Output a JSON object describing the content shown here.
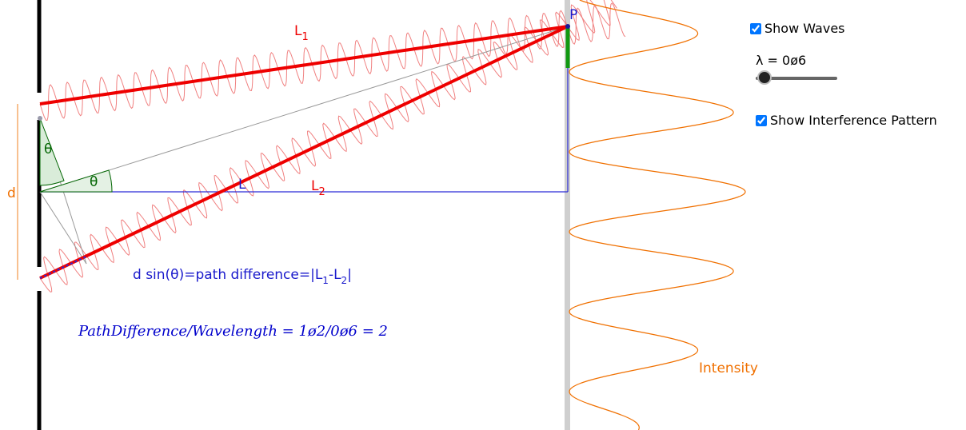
{
  "labels": {
    "L1": {
      "text": "L",
      "sub": "1"
    },
    "L2": {
      "text": "L",
      "sub": "2"
    },
    "P": "P",
    "L": "L",
    "theta_upper": "θ",
    "theta_lower": "θ",
    "d": "d",
    "intensity": "Intensity"
  },
  "formula": [
    "d sin(θ)=path difference=|L",
    "1",
    "-L",
    "2",
    "|"
  ],
  "ratio": "PathDifference/Wavelength = 1ø2/0ø6 = 2",
  "controls": {
    "show_waves": {
      "label": "Show Waves",
      "checked": true
    },
    "wavelength": {
      "label": "λ = 0ø6"
    },
    "show_pattern": {
      "label": "Show Interference Pattern",
      "checked": true
    }
  }
}
